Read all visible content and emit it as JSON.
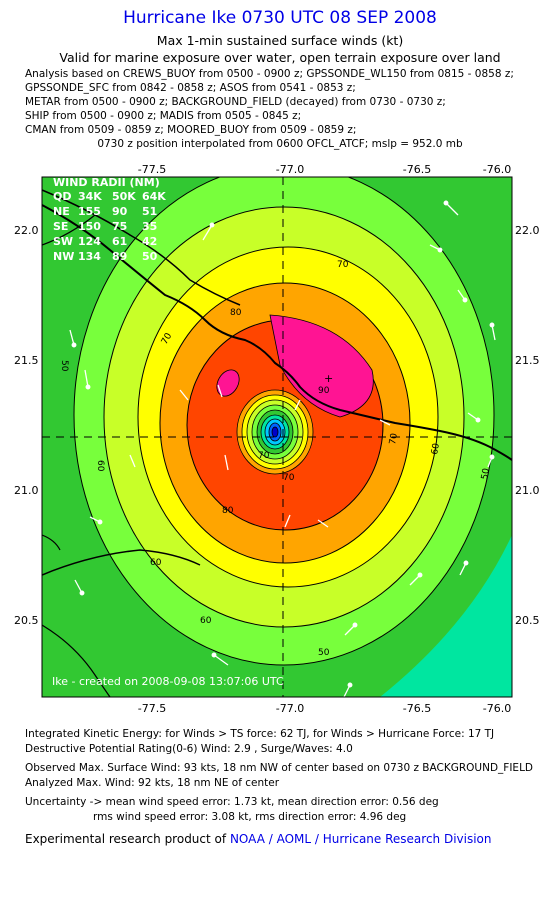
{
  "title": "Hurricane Ike 0730 UTC 08 SEP 2008",
  "subtitle1": "Max 1-min sustained surface winds (kt)",
  "subtitle2": "Valid for marine exposure over water, open terrain exposure over land",
  "analysis_lines": [
    "Analysis based on  CREWS_BUOY from 0500 - 0900 z;  GPSSONDE_WL150 from 0815 - 0858 z;",
    "GPSSONDE_SFC from 0842 - 0858 z;  ASOS from 0541 - 0853 z;",
    "METAR from 0500 - 0900 z;  BACKGROUND_FIELD (decayed) from 0730 - 0730 z;",
    "SHIP from 0500 - 0900 z;  MADIS from 0505 - 0845 z;",
    "CMAN from 0509 - 0859 z;  MOORED_BUOY from 0509 - 0859 z;"
  ],
  "position_line": "0730 z position interpolated from 0600 OFCL_ATCF; mslp = 952.0 mb",
  "map": {
    "x_ticks": [
      "-77.5",
      "-77.0",
      "-76.5",
      "-76.0"
    ],
    "y_ticks": [
      "22.0",
      "21.5",
      "21.0",
      "20.5"
    ],
    "contour_labels": [
      "70",
      "80",
      "70",
      "60",
      "50",
      "70",
      "90",
      "60",
      "50",
      "60",
      "50",
      "70",
      "70",
      "80",
      "60"
    ],
    "wind_radii": {
      "header": "WIND RADII (NM)",
      "columns": [
        "QD",
        "34K",
        "50K",
        "64K"
      ],
      "rows": [
        [
          "NE",
          "155",
          "90",
          "51"
        ],
        [
          "SE",
          "150",
          "75",
          "35"
        ],
        [
          "SW",
          "124",
          "61",
          "42"
        ],
        [
          "NW",
          "134",
          "89",
          "50"
        ]
      ]
    },
    "credit": "Ike - created on 2008-09-08 13:07:06 UTC",
    "colors": {
      "band_35": "#32c832",
      "band_50": "#78ff3c",
      "band_60": "#c8ff28",
      "band_70": "#ffff00",
      "band_80": "#ffa500",
      "band_90": "#ff4500",
      "band_100": "#ff1493",
      "sea_low": "#00e6a0"
    }
  },
  "stats": {
    "ike_line": "Integrated Kinetic Energy:  for Winds > TS force: 62 TJ,  for Winds > Hurricane Force: 17 TJ",
    "dpr_line": "Destructive Potential Rating(0-6)   Wind: 2.9 , Surge/Waves: 4.0",
    "obs_max_line": "Observed Max. Surface Wind: 93 kts, 18 nm NW of center based on 0730 z BACKGROUND_FIELD",
    "analyzed_max_line": "Analyzed Max. Wind: 92 kts, 18 nm NE of center",
    "uncertainty_line1": "Uncertainty -> mean wind speed error: 1.73 kt,   mean direction error: 0.56 deg",
    "uncertainty_line2": "rms wind speed error: 3.08 kt,   rms direction error: 4.96 deg",
    "product_prefix": "Experimental research product of",
    "product_org": "NOAA / AOML / Hurricane Research Division"
  }
}
